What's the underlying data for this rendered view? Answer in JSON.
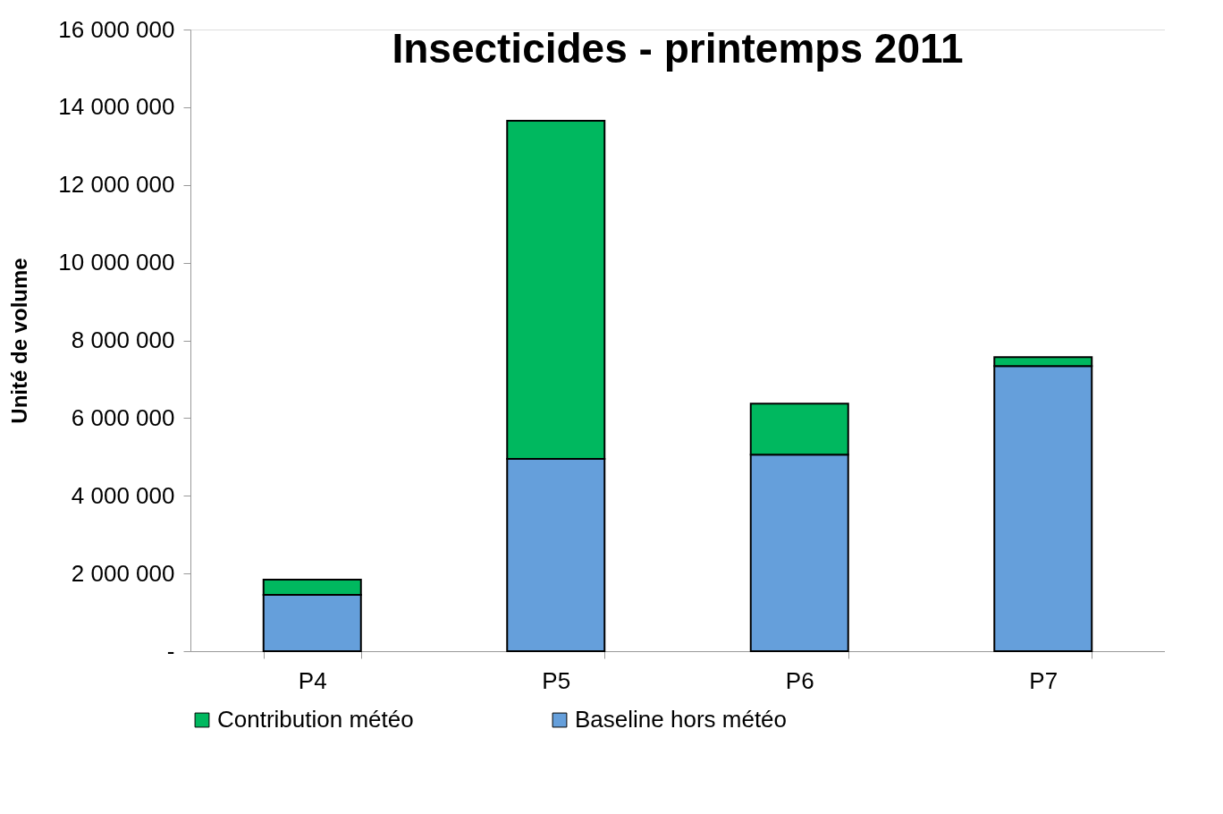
{
  "chart_data": {
    "type": "bar",
    "title": "Insecticides - printemps 2011",
    "ylabel": "Unité de volume",
    "categories": [
      "P4",
      "P5",
      "P6",
      "P7"
    ],
    "stacked": true,
    "series": [
      {
        "name": "Baseline hors météo",
        "color": "#659fdb",
        "values": [
          1450000,
          4950000,
          5060000,
          7340000
        ]
      },
      {
        "name": "Contribution météo",
        "color": "#00b85f",
        "values": [
          390000,
          8700000,
          1310000,
          230000
        ]
      }
    ],
    "ylim": [
      0,
      16000000
    ],
    "yticks": [
      {
        "value": 0,
        "label": "-"
      },
      {
        "value": 2000000,
        "label": "2 000 000"
      },
      {
        "value": 4000000,
        "label": "4 000 000"
      },
      {
        "value": 6000000,
        "label": "6 000 000"
      },
      {
        "value": 8000000,
        "label": "8 000 000"
      },
      {
        "value": 10000000,
        "label": "10 000 000"
      },
      {
        "value": 12000000,
        "label": "12 000 000"
      },
      {
        "value": 14000000,
        "label": "14 000 000"
      },
      {
        "value": 16000000,
        "label": "16 000 000"
      }
    ],
    "grid": false,
    "legend": "bottom"
  }
}
